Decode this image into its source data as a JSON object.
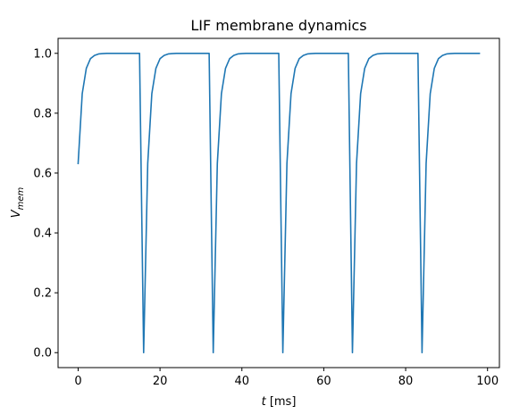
{
  "chart_data": {
    "type": "line",
    "title": "LIF membrane dynamics",
    "xlabel": {
      "var": "t",
      "unit": " [ms]"
    },
    "ylabel": {
      "var": "V",
      "sub": "mem"
    },
    "xlim": [
      -4.9,
      102.9
    ],
    "ylim": [
      -0.05,
      1.05
    ],
    "xticks": [
      0,
      20,
      40,
      60,
      80,
      100
    ],
    "yticks": [
      0.0,
      0.2,
      0.4,
      0.6,
      0.8,
      1.0
    ],
    "ytick_labels": [
      "0.0",
      "0.2",
      "0.4",
      "0.6",
      "0.8",
      "1.0"
    ],
    "grid": false,
    "legend": "none",
    "series": [
      {
        "color": "#1f77b4",
        "x": [
          0,
          1,
          2,
          3,
          4,
          5,
          6,
          7,
          8,
          9,
          10,
          11,
          12,
          13,
          14,
          15,
          16,
          17,
          18,
          19,
          20,
          21,
          22,
          23,
          24,
          25,
          26,
          27,
          28,
          29,
          30,
          31,
          32,
          33,
          34,
          35,
          36,
          37,
          38,
          39,
          40,
          41,
          42,
          43,
          44,
          45,
          46,
          47,
          48,
          49,
          50,
          51,
          52,
          53,
          54,
          55,
          56,
          57,
          58,
          59,
          60,
          61,
          62,
          63,
          64,
          65,
          66,
          67,
          68,
          69,
          70,
          71,
          72,
          73,
          74,
          75,
          76,
          77,
          78,
          79,
          80,
          81,
          82,
          83,
          84,
          85,
          86,
          87,
          88,
          89,
          90,
          91,
          92,
          93,
          94,
          95,
          96,
          97,
          98
        ],
        "y": [
          0.632,
          0.865,
          0.95,
          0.982,
          0.993,
          0.998,
          0.999,
          1.0,
          1.0,
          1.0,
          1.0,
          1.0,
          1.0,
          1.0,
          1.0,
          1.0,
          0.0,
          0.632,
          0.865,
          0.95,
          0.982,
          0.993,
          0.998,
          0.999,
          1.0,
          1.0,
          1.0,
          1.0,
          1.0,
          1.0,
          1.0,
          1.0,
          1.0,
          0.0,
          0.632,
          0.865,
          0.95,
          0.982,
          0.993,
          0.998,
          0.999,
          1.0,
          1.0,
          1.0,
          1.0,
          1.0,
          1.0,
          1.0,
          1.0,
          1.0,
          0.0,
          0.632,
          0.865,
          0.95,
          0.982,
          0.993,
          0.998,
          0.999,
          1.0,
          1.0,
          1.0,
          1.0,
          1.0,
          1.0,
          1.0,
          1.0,
          1.0,
          0.0,
          0.632,
          0.865,
          0.95,
          0.982,
          0.993,
          0.998,
          0.999,
          1.0,
          1.0,
          1.0,
          1.0,
          1.0,
          1.0,
          1.0,
          1.0,
          1.0,
          0.0,
          0.632,
          0.865,
          0.95,
          0.982,
          0.993,
          0.998,
          0.999,
          1.0,
          1.0,
          1.0,
          1.0,
          1.0,
          1.0,
          1.0
        ]
      }
    ]
  }
}
